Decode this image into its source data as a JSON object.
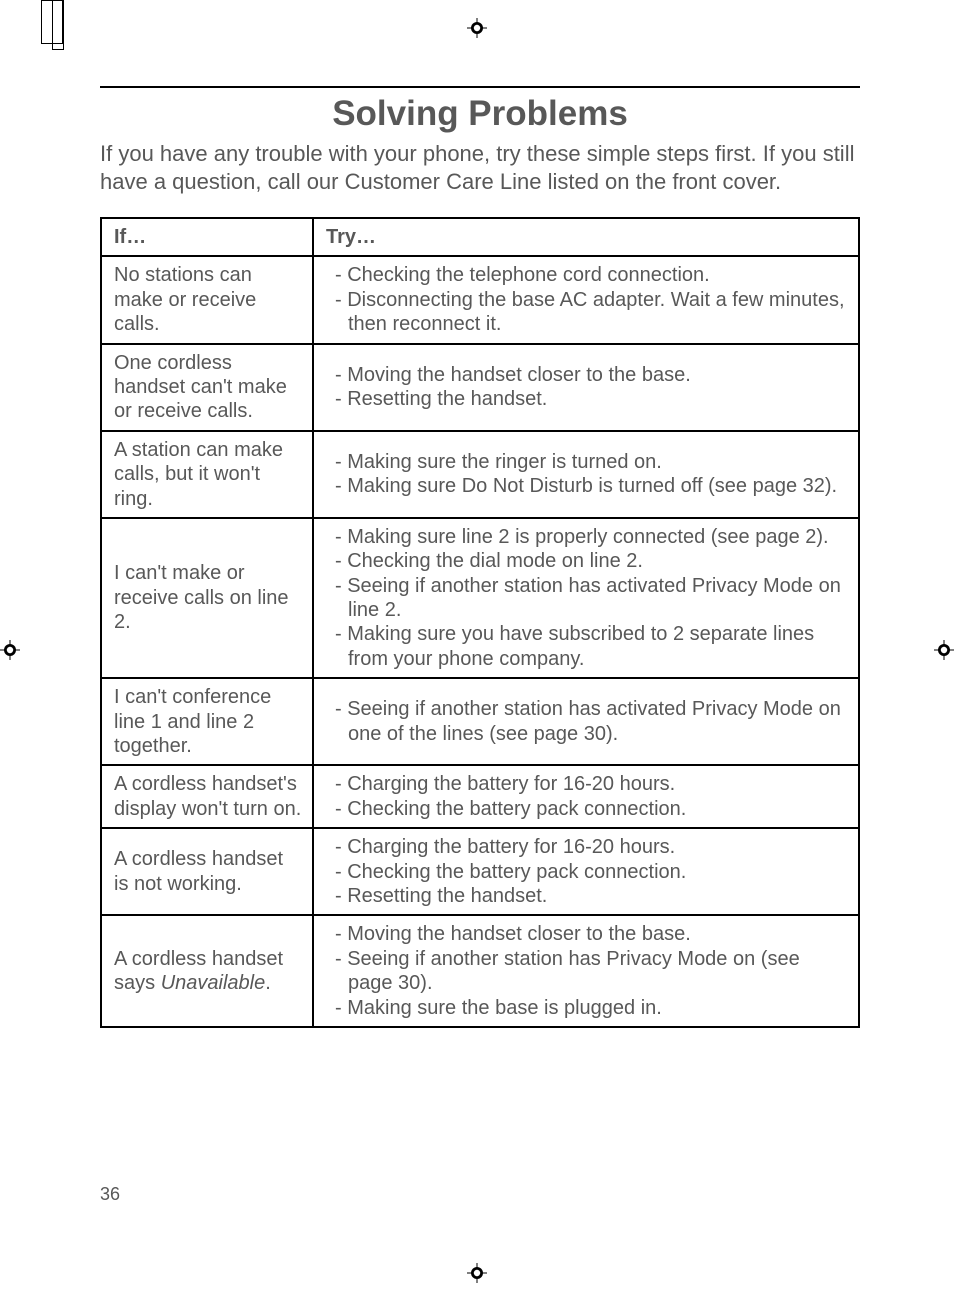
{
  "title": "Solving Problems",
  "intro": "If you have any trouble with your phone, try these simple steps first. If you still have a question, call our Customer Care Line listed on the front cover.",
  "headers": {
    "col1": "If…",
    "col2": "Try…"
  },
  "rows": [
    {
      "if": "No stations can make or receive calls.",
      "try": [
        "- Checking the telephone cord connection.",
        "- Disconnecting the base AC adapter. Wait a few minutes, then reconnect it."
      ]
    },
    {
      "if": "One cordless handset can't make or receive calls.",
      "try": [
        "- Moving the handset closer to the base.",
        "- Resetting the handset."
      ]
    },
    {
      "if": "A station can make calls, but it won't ring.",
      "try": [
        "- Making sure the ringer is turned on.",
        "- Making sure Do Not Disturb is turned off (see page 32)."
      ]
    },
    {
      "if": "I can't make or receive calls on line 2.",
      "try": [
        "- Making sure line 2 is properly connected (see page 2).",
        "- Checking the dial mode on line 2.",
        "- Seeing if another station has activated Privacy Mode on line 2.",
        "- Making sure you have subscribed to 2 separate lines from your phone company."
      ]
    },
    {
      "if": "I can't conference line 1 and line 2 together.",
      "try": [
        "- Seeing if another station has activated Privacy Mode on one of the lines (see page 30)."
      ]
    },
    {
      "if": "A cordless handset's display won't turn on.",
      "try": [
        "- Charging the battery for 16-20 hours.",
        "- Checking the battery pack connection."
      ]
    },
    {
      "if": "A cordless handset is not working.",
      "try": [
        "- Charging the battery for 16-20 hours.",
        "- Checking the battery pack connection.",
        "- Resetting the handset."
      ]
    },
    {
      "if_html": "A cordless handset says <span class=\"italic\">Unavailable</span>.",
      "try": [
        "- Moving the handset closer to the base.",
        "- Seeing if another station has Privacy Mode on (see page 30).",
        "- Making sure the base is plugged in."
      ]
    }
  ],
  "page_number": "36"
}
